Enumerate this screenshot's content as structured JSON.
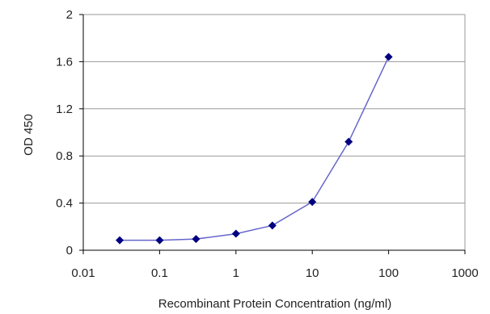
{
  "chart_data": {
    "type": "line",
    "xscale": "log",
    "xlabel": "Recombinant Protein Concentration (ng/ml)",
    "ylabel": "OD 450",
    "xlim": [
      0.01,
      1000
    ],
    "ylim": [
      0,
      2
    ],
    "x_ticks": [
      "0.01",
      "0.1",
      "1",
      "10",
      "100",
      "1000"
    ],
    "y_ticks": [
      "0",
      "0.4",
      "0.8",
      "1.2",
      "1.6",
      "2"
    ],
    "grid": "horizontal",
    "series": [
      {
        "x": [
          0.03,
          0.1,
          0.3,
          1,
          3,
          10,
          30,
          100
        ],
        "values": [
          0.085,
          0.085,
          0.095,
          0.14,
          0.21,
          0.41,
          0.92,
          1.64
        ]
      }
    ],
    "colors": {
      "line": "#6666cc",
      "marker": "#000080",
      "grid": "#999999",
      "axis": "#000000"
    }
  }
}
